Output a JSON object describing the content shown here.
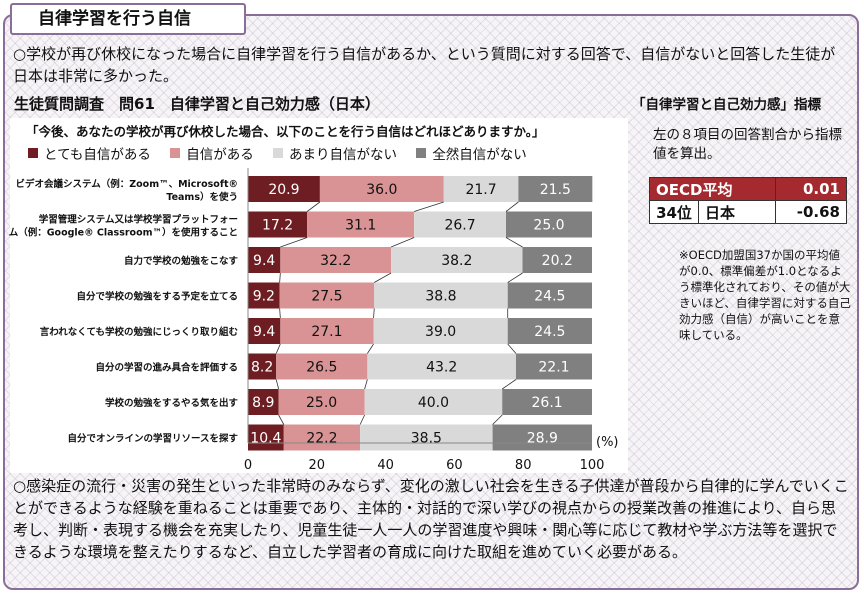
{
  "header": {
    "title": "自律学習を行う自信"
  },
  "intro_text": "○学校が再び休校になった場合に自律学習を行う自信があるか、という質問に対する回答で、自信がないと回答した生徒が日本は非常に多かった。",
  "chart_heading": "生徒質問調査　問61　自律学習と自己効力感（日本）",
  "outro_text": "○感染症の流行・災害の発生といった非常時のみならず、変化の激しい社会を生きる子供達が普段から自律的に学んでいくことができるような経験を重ねることは重要であり、主体的・対話的で深い学びの視点からの授業改善の推進により、自ら思考し、判断・表現する機会を充実したり、児童生徒一人一人の学習進度や興味・関心等に応じて教材や学ぶ方法等を選択できるような環境を整えたりするなど、自立した学習者の育成に向けた取組を進めていく必要がある。",
  "index_panel": {
    "title": "「自律学習と自己効力感」指標",
    "description": "左の８項目の回答割合から指標値を算出。",
    "table": [
      {
        "label": "OECD平均",
        "rank": "",
        "value": "0.01"
      },
      {
        "label": "日本",
        "rank": "34位",
        "value": "-0.68"
      }
    ],
    "note": "※OECD加盟国37か国の平均値が0.0、標準偏差が1.0となるよう標準化されており、その値が大きいほど、自律学習に対する自己効力感（自信）が高いことを意味している。"
  },
  "colors": {
    "frame": "#8a6d98",
    "series": [
      "#6e1e22",
      "#d99394",
      "#d9d9d9",
      "#808080"
    ]
  },
  "chart_data": {
    "type": "bar",
    "orientation": "horizontal",
    "stacked": true,
    "title": "「今後、あなたの学校が再び休校した場合、以下のことを行う自信はどれほどありますか。」",
    "xlabel": "(%)",
    "xlim": [
      0,
      100
    ],
    "xticks": [
      0,
      20,
      40,
      60,
      80,
      100
    ],
    "legend_position": "top",
    "categories": [
      [
        "ビデオ会議システム（例：Zoom™、Microsoft®",
        "Teams）を使う"
      ],
      [
        "学習管理システム又は学校学習プラットフォー",
        "ム（例：Google® Classroom™）を使用すること"
      ],
      [
        "自力で学校の勉強をこなす"
      ],
      [
        "自分で学校の勉強をする予定を立てる"
      ],
      [
        "言われなくても学校の勉強にじっくり取り組む"
      ],
      [
        "自分の学習の進み具合を評価する"
      ],
      [
        "学校の勉強をするやる気を出す"
      ],
      [
        "自分でオンラインの学習リソースを探す"
      ]
    ],
    "series": [
      {
        "name": "とても自信がある",
        "values": [
          20.9,
          17.2,
          9.4,
          9.2,
          9.4,
          8.2,
          8.9,
          10.4
        ]
      },
      {
        "name": "自信がある",
        "values": [
          36.0,
          31.1,
          32.2,
          27.5,
          27.1,
          26.5,
          25.0,
          22.2
        ]
      },
      {
        "name": "あまり自信がない",
        "values": [
          21.7,
          26.7,
          38.2,
          38.8,
          39.0,
          43.2,
          40.0,
          38.5
        ]
      },
      {
        "name": "全然自信がない",
        "values": [
          21.5,
          25.0,
          20.2,
          24.5,
          24.5,
          22.1,
          26.1,
          28.9
        ]
      }
    ]
  }
}
